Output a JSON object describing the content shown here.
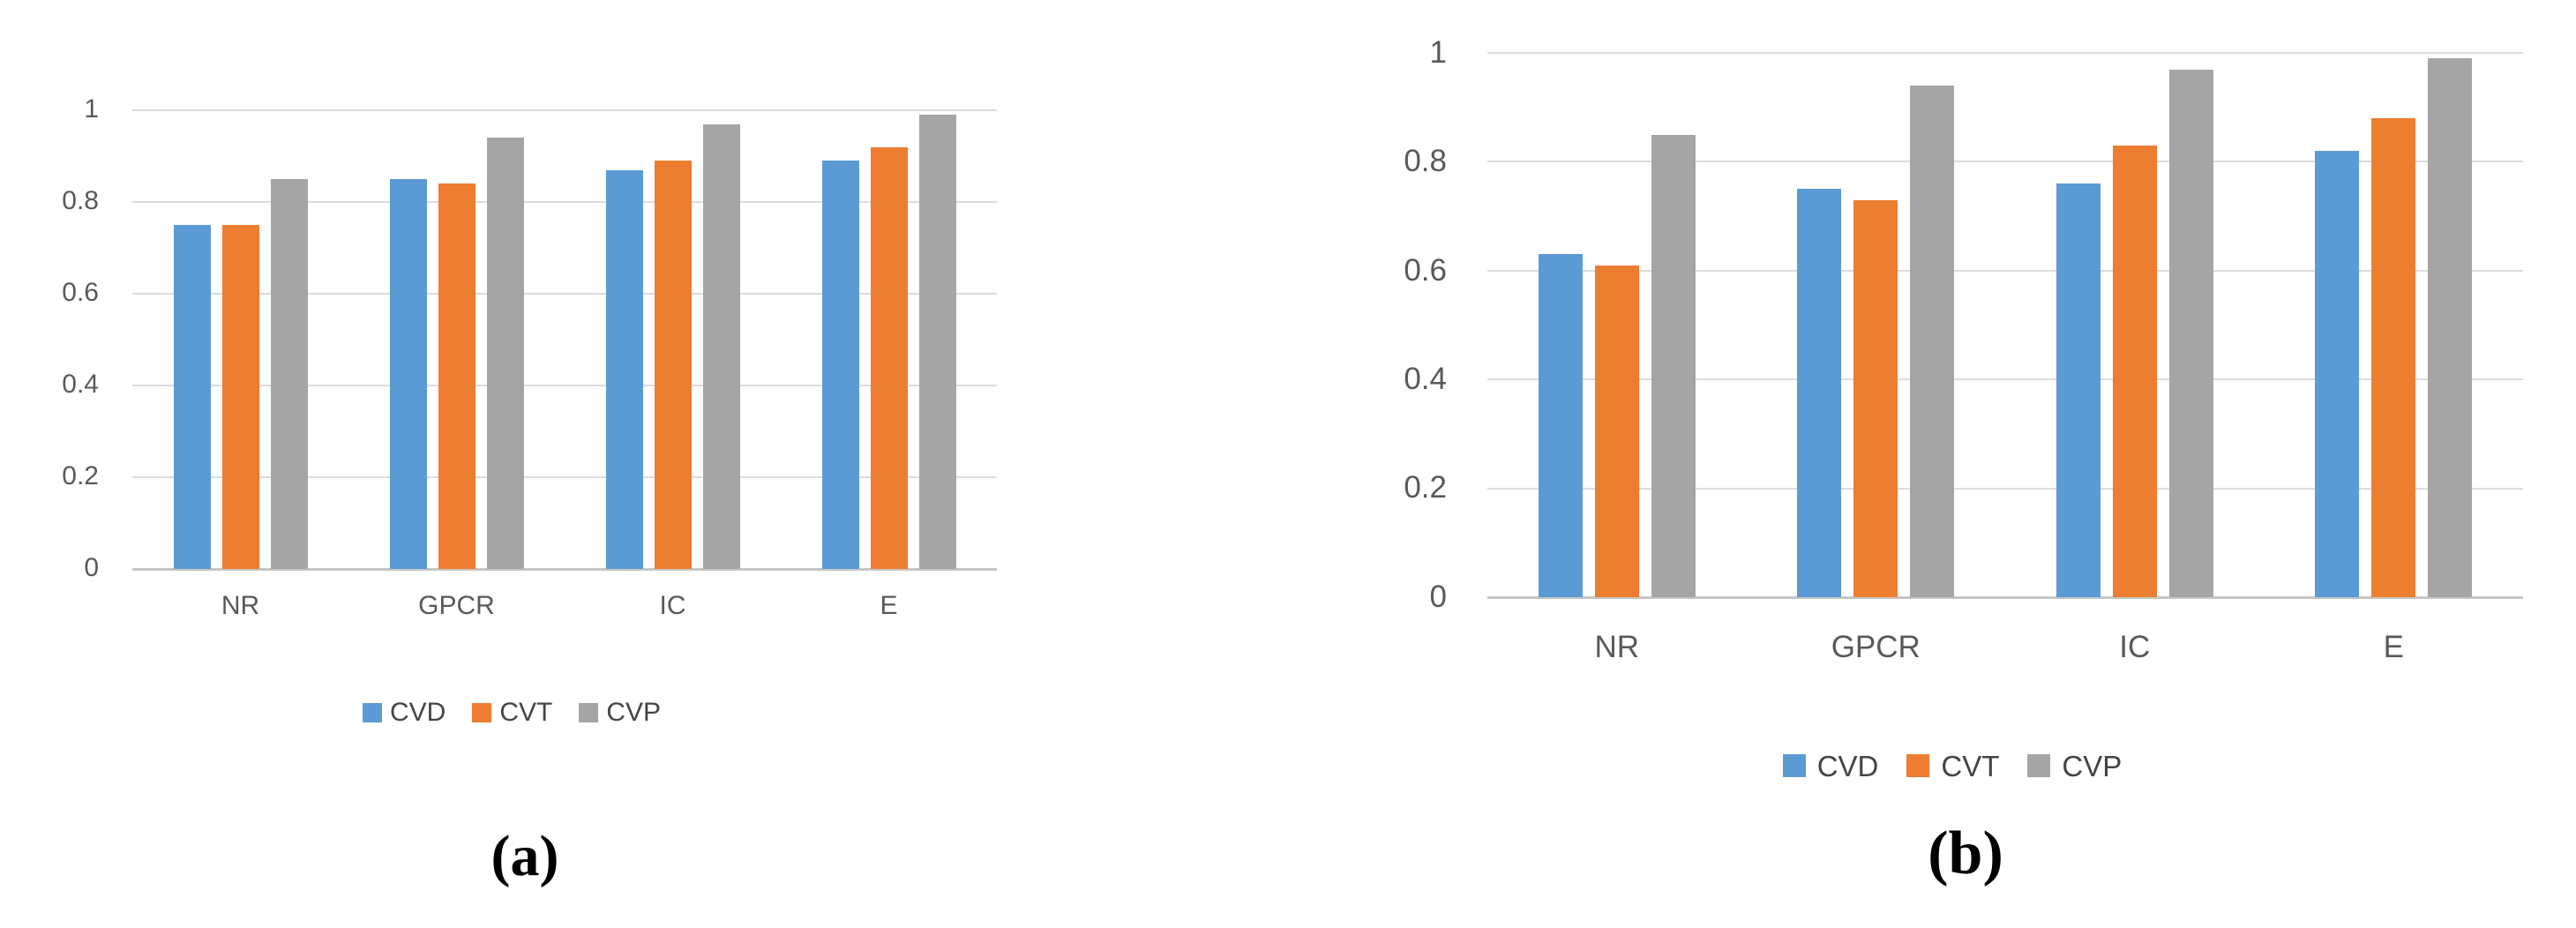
{
  "figure": {
    "background": "#ffffff",
    "description": "Two grouped bar charts comparing CVD, CVT and CVP across protein target classes"
  },
  "colors": {
    "blue": "#5B9BD5",
    "orange": "#ED7D31",
    "gray": "#A5A5A5",
    "gridline": "#DCDCDC",
    "axis_line": "#C6C6C6",
    "tick_text": "#595959",
    "category_text": "#595959",
    "legend_text": "#444444",
    "caption_text": "#000000"
  },
  "chart_data": [
    {
      "id": "a",
      "type": "bar",
      "caption": "(a)",
      "title": "",
      "xlabel": "",
      "ylabel": "",
      "categories": [
        "NR",
        "GPCR",
        "IC",
        "E"
      ],
      "series": [
        {
          "name": "CVD",
          "color_key": "blue",
          "values": [
            0.75,
            0.85,
            0.87,
            0.89
          ]
        },
        {
          "name": "CVT",
          "color_key": "orange",
          "values": [
            0.75,
            0.84,
            0.89,
            0.92
          ]
        },
        {
          "name": "CVP",
          "color_key": "gray",
          "values": [
            0.85,
            0.94,
            0.97,
            0.99
          ]
        }
      ],
      "y_ticks": [
        "0",
        "0.2",
        "0.4",
        "0.6",
        "0.8",
        "1"
      ],
      "ylim": [
        0,
        1
      ],
      "grid": true,
      "legend_position": "bottom"
    },
    {
      "id": "b",
      "type": "bar",
      "caption": "(b)",
      "title": "",
      "xlabel": "",
      "ylabel": "",
      "categories": [
        "NR",
        "GPCR",
        "IC",
        "E"
      ],
      "series": [
        {
          "name": "CVD",
          "color_key": "blue",
          "values": [
            0.63,
            0.75,
            0.76,
            0.82
          ]
        },
        {
          "name": "CVT",
          "color_key": "orange",
          "values": [
            0.61,
            0.73,
            0.83,
            0.88
          ]
        },
        {
          "name": "CVP",
          "color_key": "gray",
          "values": [
            0.85,
            0.94,
            0.97,
            0.99
          ]
        }
      ],
      "y_ticks": [
        "0",
        "0.2",
        "0.4",
        "0.6",
        "0.8",
        "1"
      ],
      "ylim": [
        0,
        1
      ],
      "grid": true,
      "legend_position": "bottom"
    }
  ]
}
